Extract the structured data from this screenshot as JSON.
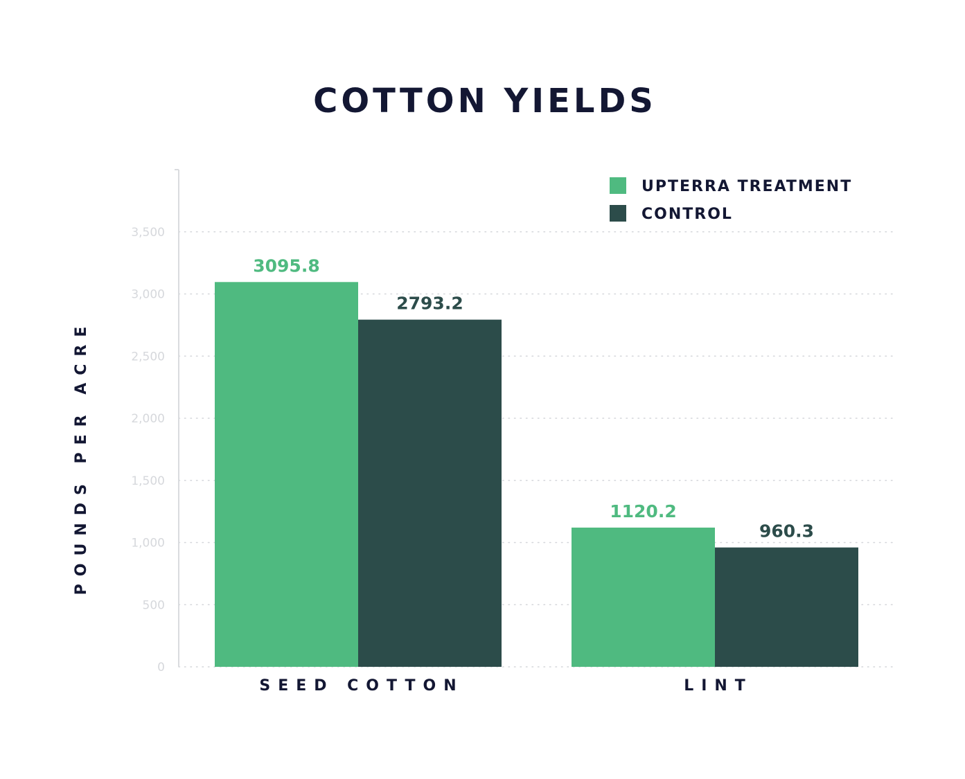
{
  "chart_data": {
    "type": "bar",
    "title": "COTTON YIELDS",
    "ylabel": "POUNDS PER ACRE",
    "xlabel": "",
    "categories": [
      "SEED COTTON",
      "LINT"
    ],
    "series": [
      {
        "name": "UPTERRA TREATMENT",
        "color": "#4fba80",
        "values": [
          3095.8,
          1120.2
        ],
        "labels": [
          "3095.8",
          "1120.2"
        ]
      },
      {
        "name": "CONTROL",
        "color": "#2c4c4a",
        "values": [
          2793.2,
          960.3
        ],
        "labels": [
          "2793.2",
          "960.3"
        ]
      }
    ],
    "ylim": [
      0,
      4000
    ],
    "yticks": [
      0,
      500,
      1000,
      1500,
      2000,
      2500,
      3000,
      3500
    ],
    "ytick_labels": [
      "0",
      "500",
      "1,000",
      "1,500",
      "2,000",
      "2,500",
      "3,000",
      "3,500"
    ],
    "grid": "horizontal dotted",
    "legend_position": "top-right"
  }
}
